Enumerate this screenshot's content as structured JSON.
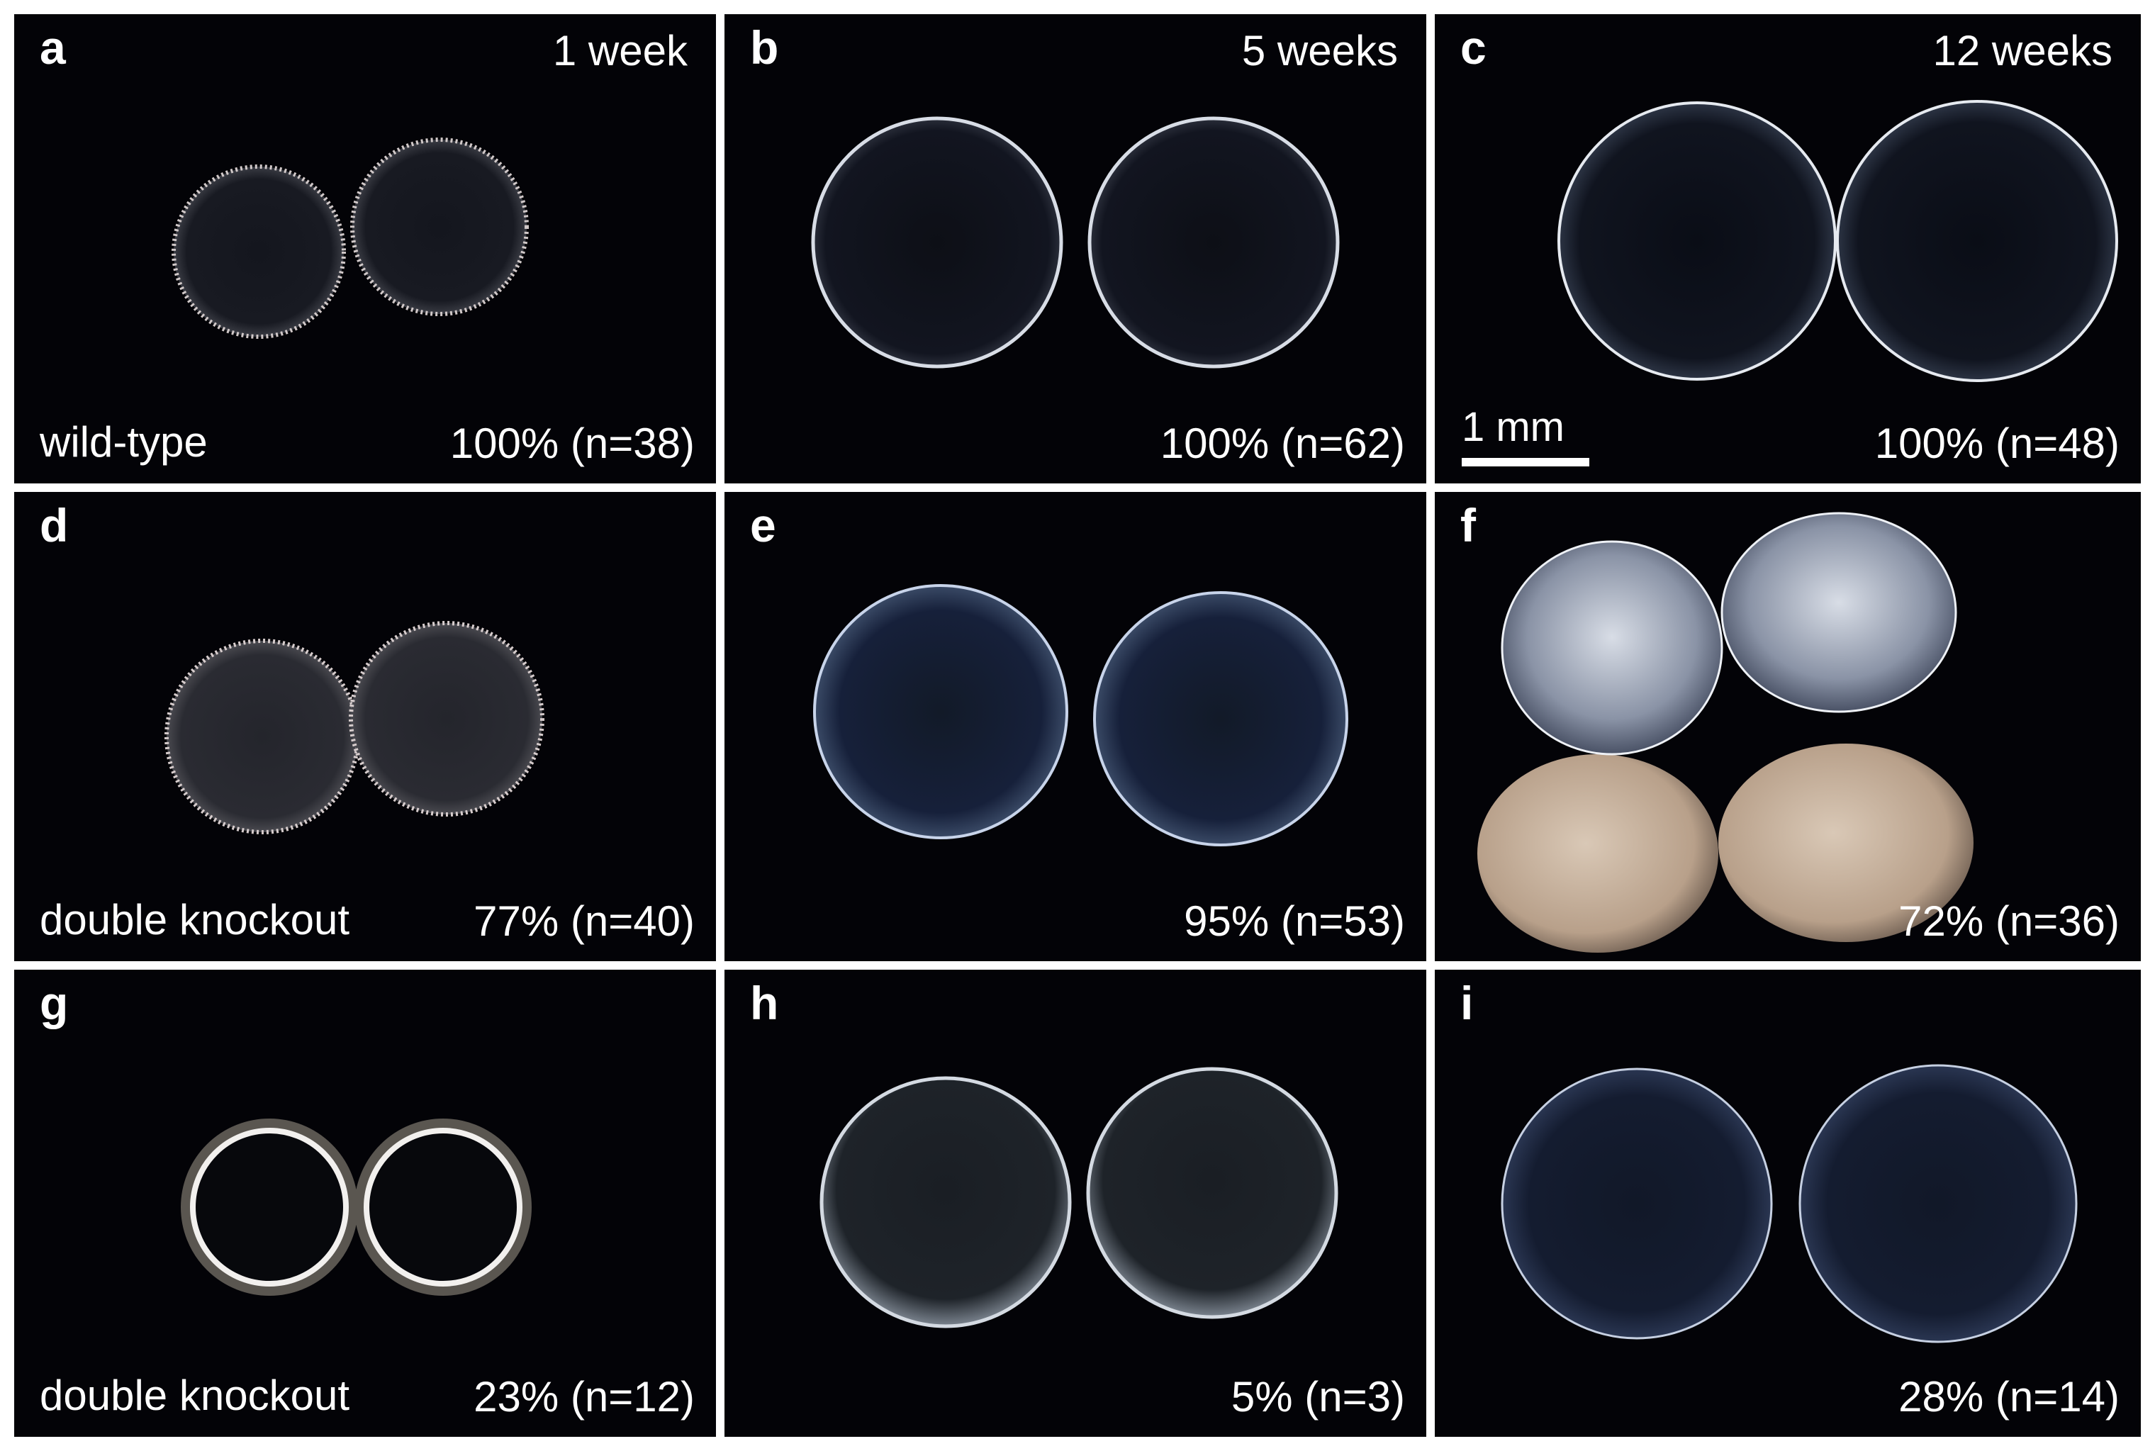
{
  "figure": {
    "panels": [
      {
        "letter": "a",
        "time": "1 week",
        "genotype": "wild-type",
        "percent": "100% (n=38)"
      },
      {
        "letter": "b",
        "time": "5 weeks",
        "genotype": "",
        "percent": "100% (n=62)"
      },
      {
        "letter": "c",
        "time": "12 weeks",
        "genotype": "",
        "percent": "100% (n=48)",
        "scale": "1 mm"
      },
      {
        "letter": "d",
        "time": "",
        "genotype": "double knockout",
        "percent": "77% (n=40)"
      },
      {
        "letter": "e",
        "time": "",
        "genotype": "",
        "percent": "95% (n=53)"
      },
      {
        "letter": "f",
        "time": "",
        "genotype": "",
        "percent": "72% (n=36)"
      },
      {
        "letter": "g",
        "time": "",
        "genotype": "double knockout",
        "percent": "23% (n=12)"
      },
      {
        "letter": "h",
        "time": "",
        "genotype": "",
        "percent": "5% (n=3)"
      },
      {
        "letter": "i",
        "time": "",
        "genotype": "",
        "percent": "28% (n=14)"
      }
    ]
  }
}
